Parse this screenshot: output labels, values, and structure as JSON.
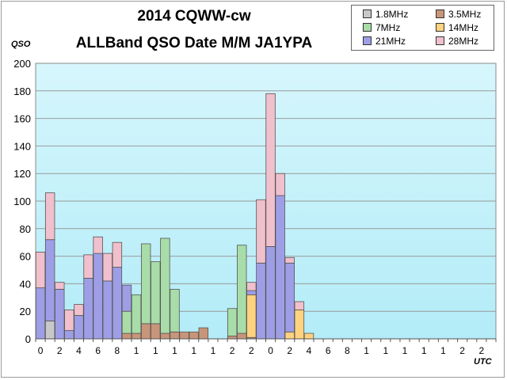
{
  "chart_data": {
    "type": "bar",
    "stacked": true,
    "title": "2014 CQWW-cw",
    "subtitle": "ALLBand QSO Date M/M JA1YPA",
    "xlabel": "UTC",
    "ylabel": "QSO",
    "ylim": [
      0,
      200
    ],
    "yticks": [
      0,
      20,
      40,
      60,
      80,
      100,
      120,
      140,
      160,
      180,
      200
    ],
    "categories": [
      "0",
      "1",
      "2",
      "3",
      "4",
      "5",
      "6",
      "7",
      "8",
      "9",
      "10",
      "11",
      "12",
      "13",
      "14",
      "15",
      "16",
      "17",
      "18",
      "19",
      "20",
      "21",
      "22",
      "23",
      "0",
      "1",
      "2",
      "3",
      "4",
      "5",
      "6",
      "7",
      "8",
      "9",
      "10",
      "11",
      "12",
      "13",
      "14",
      "15",
      "16",
      "17",
      "18",
      "19",
      "20",
      "21",
      "22",
      "23"
    ],
    "tick_labels": [
      "0",
      "2",
      "4",
      "6",
      "8",
      "1",
      "1",
      "1",
      "1",
      "1",
      "2",
      "2",
      "0",
      "2",
      "4",
      "6",
      "8",
      "1",
      "1",
      "1",
      "1",
      "1",
      "2",
      "2"
    ],
    "grid": true,
    "legend_position": "top-right",
    "series": [
      {
        "name": "1.8MHz",
        "color": "#c8c8c8",
        "values": [
          0,
          13,
          0,
          0,
          0,
          0,
          0,
          0,
          0,
          0,
          0,
          0,
          0,
          0,
          0,
          0,
          0,
          0,
          0,
          0,
          0,
          0,
          0,
          0,
          0,
          0,
          0,
          0,
          0,
          0,
          0,
          0,
          0,
          0,
          0,
          0,
          0,
          0,
          0,
          0,
          0,
          0,
          0,
          0,
          0,
          0,
          0,
          0
        ]
      },
      {
        "name": "3.5MHz",
        "color": "#c8957a",
        "values": [
          0,
          0,
          0,
          0,
          0,
          0,
          0,
          0,
          0,
          4,
          4,
          11,
          11,
          4,
          5,
          5,
          5,
          8,
          0,
          0,
          2,
          4,
          1,
          0,
          0,
          0,
          0,
          0,
          0,
          0,
          0,
          0,
          0,
          0,
          0,
          0,
          0,
          0,
          0,
          0,
          0,
          0,
          0,
          0,
          0,
          0,
          0,
          0
        ]
      },
      {
        "name": "7MHz",
        "color": "#a8dca8",
        "values": [
          0,
          0,
          0,
          0,
          0,
          0,
          0,
          0,
          0,
          16,
          28,
          58,
          45,
          69,
          31,
          0,
          0,
          0,
          0,
          0,
          20,
          64,
          0,
          0,
          0,
          0,
          0,
          0,
          0,
          0,
          0,
          0,
          0,
          0,
          0,
          0,
          0,
          0,
          0,
          0,
          0,
          0,
          0,
          0,
          0,
          0,
          0,
          0
        ]
      },
      {
        "name": "14MHz",
        "color": "#ffd27f",
        "values": [
          0,
          0,
          0,
          0,
          0,
          0,
          0,
          0,
          0,
          0,
          0,
          0,
          0,
          0,
          0,
          0,
          0,
          0,
          0,
          0,
          0,
          0,
          31,
          0,
          0,
          0,
          5,
          21,
          4,
          0,
          0,
          0,
          0,
          0,
          0,
          0,
          0,
          0,
          0,
          0,
          0,
          0,
          0,
          0,
          0,
          0,
          0,
          0
        ]
      },
      {
        "name": "21MHz",
        "color": "#9e9ee6",
        "values": [
          37,
          59,
          36,
          6,
          17,
          44,
          62,
          42,
          52,
          19,
          0,
          0,
          0,
          0,
          0,
          0,
          0,
          0,
          0,
          0,
          0,
          0,
          3,
          55,
          67,
          104,
          50,
          0,
          0,
          0,
          0,
          0,
          0,
          0,
          0,
          0,
          0,
          0,
          0,
          0,
          0,
          0,
          0,
          0,
          0,
          0,
          0,
          0
        ]
      },
      {
        "name": "28MHz",
        "color": "#f0c0cc",
        "values": [
          26,
          34,
          5,
          15,
          8,
          17,
          12,
          20,
          18,
          0,
          0,
          0,
          0,
          0,
          0,
          0,
          0,
          0,
          0,
          0,
          0,
          0,
          6,
          46,
          111,
          16,
          4,
          6,
          0,
          0,
          0,
          0,
          0,
          0,
          0,
          0,
          0,
          0,
          0,
          0,
          0,
          0,
          0,
          0,
          0,
          0,
          0,
          0
        ]
      }
    ]
  }
}
